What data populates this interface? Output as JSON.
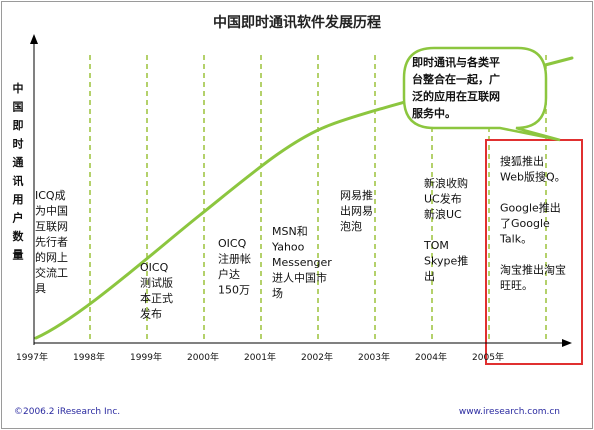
{
  "chart_data": {
    "type": "line",
    "title": "中国即时通讯软件发展历程",
    "ylabel": "中国即时通讯用户数量",
    "xlabel": "",
    "x": [
      "1997年",
      "1998年",
      "1999年",
      "2000年",
      "2001年",
      "2002年",
      "2003年",
      "2004年",
      "2005年"
    ],
    "categories": [
      "1997年",
      "1998年",
      "1999年",
      "2000年",
      "2001年",
      "2002年",
      "2003年",
      "2004年",
      "2005年"
    ],
    "series": [
      {
        "values": [
          0.0,
          0.2,
          0.38,
          0.54,
          0.67,
          0.75,
          0.82,
          0.87,
          0.91
        ]
      }
    ],
    "grid": "vertical dashed",
    "colors": {
      "line": "#8cc63f",
      "grid": "#9cc23a",
      "highlight": "#e03030",
      "axis": "#000000"
    },
    "annotations": [
      {
        "lines": [
          "ICQ成",
          "为中国",
          "互联网",
          "先行者",
          "的网上",
          "交流工",
          "具"
        ]
      },
      {
        "lines": [
          "OICQ",
          "测试版",
          "本正式",
          "发布"
        ]
      },
      {
        "lines": [
          "OICQ",
          "注册帐",
          "户达",
          "150万"
        ]
      },
      {
        "lines": [
          "MSN和",
          "Yahoo",
          "Messenger",
          "进人中国市",
          "场"
        ]
      },
      {
        "lines": [
          "网易推",
          "出网易",
          "泡泡"
        ]
      },
      {
        "lines": [
          "新浪收购",
          "UC发布",
          "新浪UC",
          "",
          "TOM",
          "Skype推",
          "出"
        ]
      },
      {
        "lines": [
          "搜狐推出",
          "Web版搜Q。",
          "",
          "Google推出",
          "了Google",
          "Talk。",
          "",
          "淘宝推出淘宝",
          "旺旺。"
        ]
      }
    ],
    "callout": {
      "lines": [
        "即时通讯与各类平",
        "台整合在一起，广",
        "泛的应用在互联网",
        "服务中。"
      ]
    }
  },
  "footer": {
    "left": "©2006.2 iResearch Inc.",
    "right": "www.iresearch.com.cn"
  }
}
